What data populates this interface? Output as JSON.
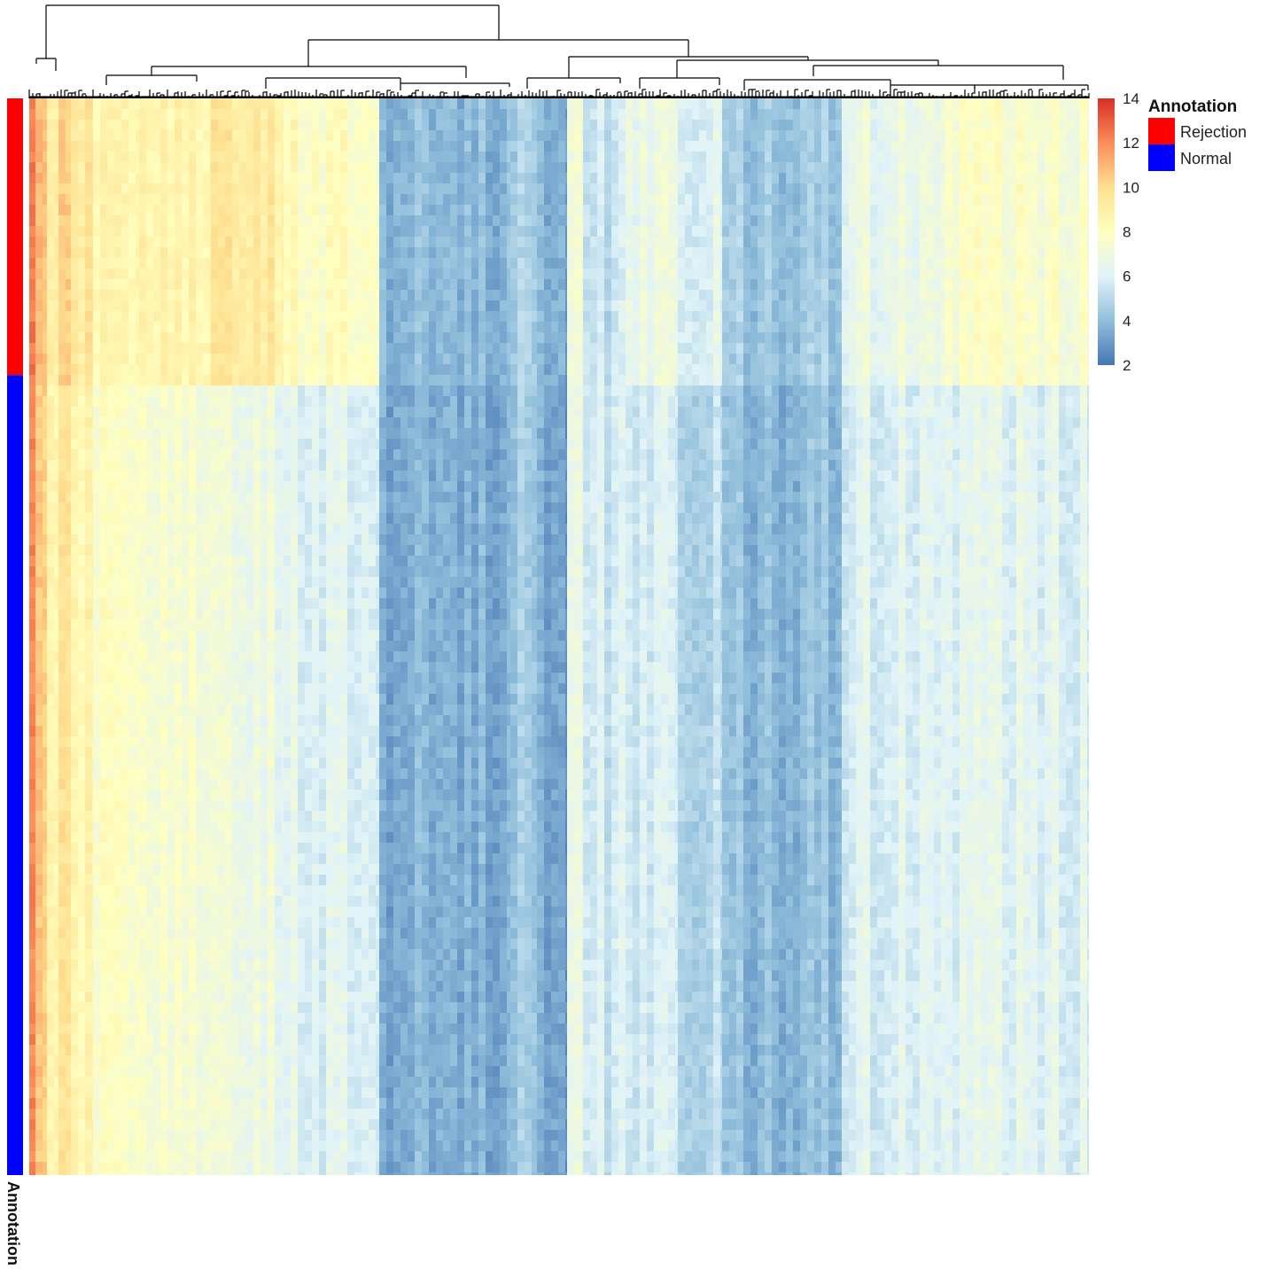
{
  "chart_data": {
    "type": "heatmap",
    "title": "",
    "xlabel": "",
    "ylabel": "",
    "color_scale": {
      "min": 2,
      "max": 14,
      "ticks": [
        14,
        12,
        10,
        8,
        6,
        4,
        2
      ],
      "colors": [
        "#4575b4",
        "#91bfdb",
        "#e0f3f8",
        "#ffffbf",
        "#fee090",
        "#fc8d59",
        "#d73027"
      ]
    },
    "row_annotation": {
      "title": "Annotation",
      "axis_label": "Annotation",
      "groups": [
        {
          "name": "Rejection",
          "color": "#ff0000",
          "fraction": 0.257
        },
        {
          "name": "Normal",
          "color": "#0000ff",
          "fraction": 0.743
        }
      ]
    },
    "column_dendrogram": true,
    "column_cluster_profile": [
      {
        "rejection": 12.4,
        "normal": 12.1
      },
      {
        "rejection": 11.3,
        "normal": 10.9
      },
      {
        "rejection": 9.0,
        "normal": 8.6
      },
      {
        "rejection": 10.1,
        "normal": 9.4
      },
      {
        "rejection": 9.4,
        "normal": 8.5
      },
      {
        "rejection": 8.6,
        "normal": 7.8
      },
      {
        "rejection": 8.4,
        "normal": 7.1
      },
      {
        "rejection": 9.2,
        "normal": 6.7
      },
      {
        "rejection": 8.0,
        "normal": 6.1
      },
      {
        "rejection": 3.8,
        "normal": 3.5
      },
      {
        "rejection": 4.6,
        "normal": 4.4
      },
      {
        "rejection": 3.6,
        "normal": 3.3
      },
      {
        "rejection": 7.0,
        "normal": 6.6
      },
      {
        "rejection": 5.4,
        "normal": 5.7
      },
      {
        "rejection": 6.9,
        "normal": 5.9
      },
      {
        "rejection": 6.0,
        "normal": 4.9
      },
      {
        "rejection": 4.3,
        "normal": 3.9
      },
      {
        "rejection": 6.6,
        "normal": 5.9
      },
      {
        "rejection": 7.6,
        "normal": 6.2
      }
    ]
  }
}
